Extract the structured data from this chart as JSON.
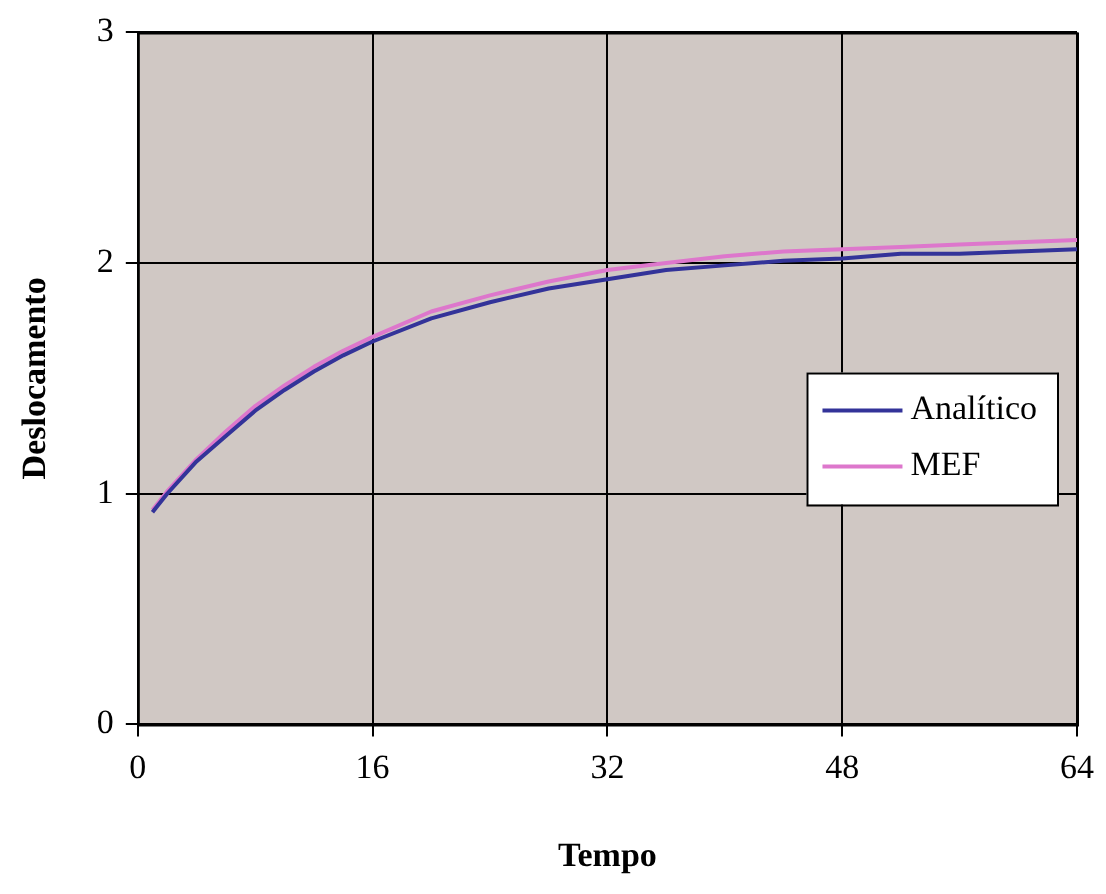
{
  "chart_data": {
    "type": "line",
    "xlabel": "Tempo",
    "ylabel": "Deslocamento",
    "xlim": [
      0,
      64
    ],
    "xticks": [
      0,
      16,
      32,
      48,
      64
    ],
    "ylim": [
      0,
      3
    ],
    "yticks": [
      0,
      1,
      2,
      3
    ],
    "grid": true,
    "legend": "right",
    "marker": "none",
    "line_style": "solid",
    "x": [
      1,
      2,
      4,
      6,
      8,
      10,
      12,
      14,
      16,
      20,
      24,
      28,
      32,
      36,
      40,
      44,
      48,
      52,
      56,
      60,
      64
    ],
    "series": [
      {
        "name": "Analítico",
        "color": "#333399",
        "values": [
          0.92,
          1.0,
          1.14,
          1.25,
          1.36,
          1.45,
          1.53,
          1.6,
          1.66,
          1.76,
          1.83,
          1.89,
          1.93,
          1.97,
          1.99,
          2.01,
          2.02,
          2.04,
          2.04,
          2.05,
          2.06
        ]
      },
      {
        "name": "MEF",
        "color": "#dd77cc",
        "values": [
          0.93,
          1.01,
          1.15,
          1.27,
          1.38,
          1.47,
          1.55,
          1.62,
          1.68,
          1.79,
          1.86,
          1.92,
          1.97,
          2.0,
          2.03,
          2.05,
          2.06,
          2.07,
          2.08,
          2.09,
          2.1
        ]
      }
    ]
  }
}
